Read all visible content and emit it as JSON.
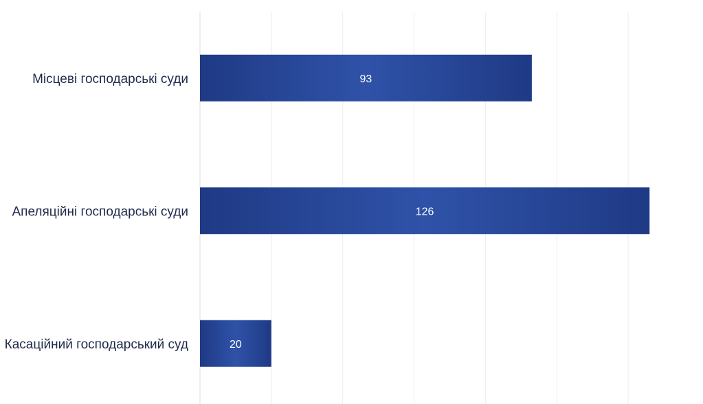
{
  "chart_data": {
    "type": "bar",
    "orientation": "horizontal",
    "categories": [
      "Місцеві господарські суди",
      "Апеляційні господарські суди",
      "Касаційний господарський суд"
    ],
    "values": [
      93,
      126,
      20
    ],
    "xlim": [
      0,
      130
    ],
    "grid": true,
    "legend": "none",
    "colors": {
      "bar_edge": "#1f3a85",
      "bar_center": "#2f52a8",
      "label": "#1f2a4a",
      "bar_text": "#ffffff",
      "grid": "#ececec"
    }
  }
}
